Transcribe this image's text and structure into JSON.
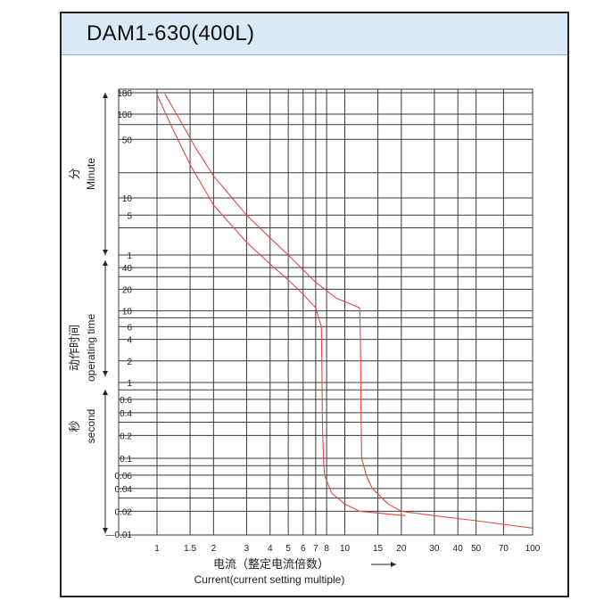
{
  "title": "DAM1-630(400L)",
  "chart_data": {
    "type": "line",
    "title": "DAM1-630(400L)",
    "xlabel_cn": "电流（整定电流倍数）",
    "xlabel_en": "Current(current setting multiple)",
    "x_scale": "log",
    "xlim": [
      1,
      100
    ],
    "x_ticks": [
      "1",
      "1.5",
      "2",
      "3",
      "4",
      "5",
      "6",
      "7",
      "8",
      "10",
      "15",
      "20",
      "30",
      "40",
      "50",
      "70",
      "100"
    ],
    "y_sections": [
      {
        "unit_cn": "分",
        "unit_en": "Minute",
        "ticks": [
          "180",
          "100",
          "50",
          "10",
          "5",
          "1"
        ]
      },
      {
        "unit_cn": "动作时间",
        "unit_en": "operating time",
        "ticks": [
          "40",
          "20",
          "10",
          "6",
          "4",
          "2",
          "1"
        ]
      },
      {
        "unit_cn": "秒",
        "unit_en": "second",
        "ticks": [
          "0.6",
          "0.4",
          "0.2",
          "0.1",
          "0.06",
          "0.04",
          "0.02",
          "0.01"
        ]
      }
    ],
    "series": [
      {
        "points": [
          [
            1.0,
            10200
          ],
          [
            1.2,
            4200
          ],
          [
            1.5,
            1500
          ],
          [
            2,
            450
          ],
          [
            3,
            100
          ],
          [
            4,
            45
          ],
          [
            5,
            27
          ],
          [
            6,
            17
          ],
          [
            7,
            11
          ],
          [
            7.5,
            6
          ],
          [
            7.55,
            2
          ],
          [
            7.6,
            0.3
          ],
          [
            7.7,
            0.1
          ],
          [
            7.8,
            0.06
          ],
          [
            8.5,
            0.035
          ],
          [
            10,
            0.025
          ],
          [
            12,
            0.02
          ],
          [
            21,
            0.0175
          ]
        ]
      },
      {
        "points": [
          [
            1.1,
            10500
          ],
          [
            1.3,
            5500
          ],
          [
            1.6,
            2400
          ],
          [
            2,
            1100
          ],
          [
            3,
            300
          ],
          [
            4,
            120
          ],
          [
            5,
            60
          ],
          [
            7,
            25
          ],
          [
            9,
            15
          ],
          [
            12,
            11
          ],
          [
            12.1,
            5
          ],
          [
            12.2,
            0.4
          ],
          [
            12.3,
            0.1
          ],
          [
            13,
            0.06
          ],
          [
            14,
            0.04
          ],
          [
            17,
            0.025
          ],
          [
            20,
            0.02
          ],
          [
            30,
            0.0175
          ],
          [
            50,
            0.015
          ],
          [
            100,
            0.012
          ]
        ]
      }
    ],
    "colors": {
      "curve": "#e04848",
      "grid": "#3a3a3a"
    }
  }
}
